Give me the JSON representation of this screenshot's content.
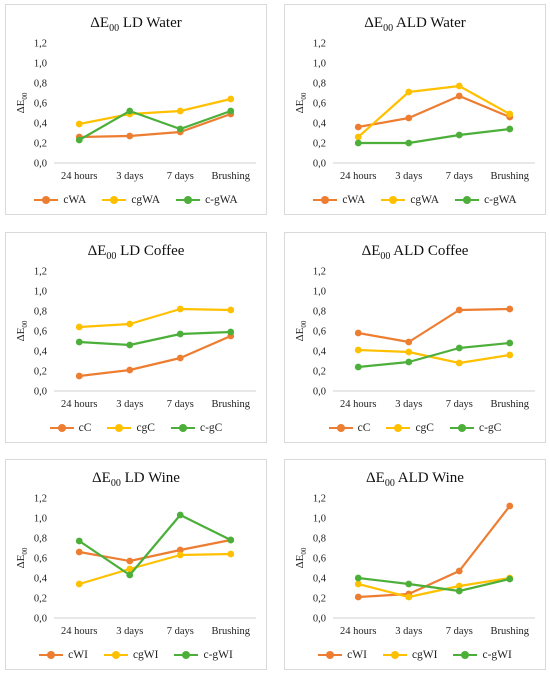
{
  "chart_data": [
    {
      "type": "line",
      "title": "ΔE00 LD Water",
      "title_main": "ΔE",
      "title_sub": "00",
      "title_rest": " LD Water",
      "ylabel": "ΔE00",
      "categories": [
        "24 hours",
        "3 days",
        "7 days",
        "Brushing"
      ],
      "yticks": [
        "0,0",
        "0,2",
        "0,4",
        "0,6",
        "0,8",
        "1,0",
        "1,2"
      ],
      "ylim": [
        0,
        1.2
      ],
      "legend_position": "bottom",
      "grid": false,
      "series": [
        {
          "name": "cWA",
          "color": "#ED7D31",
          "values": [
            0.26,
            0.27,
            0.31,
            0.49
          ]
        },
        {
          "name": "cgWA",
          "color": "#FFC000",
          "values": [
            0.39,
            0.49,
            0.52,
            0.64
          ]
        },
        {
          "name": "c-gWA",
          "color": "#4CAF3A",
          "values": [
            0.23,
            0.52,
            0.34,
            0.52
          ]
        }
      ]
    },
    {
      "type": "line",
      "title": "ΔE00 ALD Water",
      "title_main": "ΔE",
      "title_sub": "00",
      "title_rest": " ALD Water",
      "ylabel": "ΔE00",
      "categories": [
        "24 hours",
        "3 days",
        "7 days",
        "Brushing"
      ],
      "yticks": [
        "0,0",
        "0,2",
        "0,4",
        "0,6",
        "0,8",
        "1,0",
        "1,2"
      ],
      "ylim": [
        0,
        1.2
      ],
      "legend_position": "bottom",
      "grid": false,
      "series": [
        {
          "name": "cWA",
          "color": "#ED7D31",
          "values": [
            0.36,
            0.45,
            0.67,
            0.46
          ]
        },
        {
          "name": "cgWA",
          "color": "#FFC000",
          "values": [
            0.26,
            0.71,
            0.77,
            0.49
          ]
        },
        {
          "name": "c-gWA",
          "color": "#4CAF3A",
          "values": [
            0.2,
            0.2,
            0.28,
            0.34
          ]
        }
      ]
    },
    {
      "type": "line",
      "title": "ΔE00 LD Coffee",
      "title_main": "ΔE",
      "title_sub": "00",
      "title_rest": " LD Coffee",
      "ylabel": "ΔE00",
      "categories": [
        "24 hours",
        "3 days",
        "7 days",
        "Brushing"
      ],
      "yticks": [
        "0,0",
        "0,2",
        "0,4",
        "0,6",
        "0,8",
        "1,0",
        "1,2"
      ],
      "ylim": [
        0,
        1.2
      ],
      "legend_position": "bottom",
      "grid": false,
      "series": [
        {
          "name": "cC",
          "color": "#ED7D31",
          "values": [
            0.15,
            0.21,
            0.33,
            0.55
          ]
        },
        {
          "name": "cgC",
          "color": "#FFC000",
          "values": [
            0.64,
            0.67,
            0.82,
            0.81
          ]
        },
        {
          "name": "c-gC",
          "color": "#4CAF3A",
          "values": [
            0.49,
            0.46,
            0.57,
            0.59
          ]
        }
      ]
    },
    {
      "type": "line",
      "title": "ΔE00 ALD Coffee",
      "title_main": "ΔE",
      "title_sub": "00",
      "title_rest": " ALD Coffee",
      "ylabel": "ΔE00",
      "categories": [
        "24 hours",
        "3 days",
        "7 days",
        "Brushing"
      ],
      "yticks": [
        "0,0",
        "0,2",
        "0,4",
        "0,6",
        "0,8",
        "1,0",
        "1,2"
      ],
      "ylim": [
        0,
        1.2
      ],
      "legend_position": "bottom",
      "grid": false,
      "series": [
        {
          "name": "cC",
          "color": "#ED7D31",
          "values": [
            0.58,
            0.49,
            0.81,
            0.82
          ]
        },
        {
          "name": "cgC",
          "color": "#FFC000",
          "values": [
            0.41,
            0.39,
            0.28,
            0.36
          ]
        },
        {
          "name": "c-gC",
          "color": "#4CAF3A",
          "values": [
            0.24,
            0.29,
            0.43,
            0.48
          ]
        }
      ]
    },
    {
      "type": "line",
      "title": "ΔE00 LD Wine",
      "title_main": "ΔE",
      "title_sub": "00",
      "title_rest": " LD Wine",
      "ylabel": "ΔE00",
      "categories": [
        "24 hours",
        "3 days",
        "7 days",
        "Brushing"
      ],
      "yticks": [
        "0,0",
        "0,2",
        "0,4",
        "0,6",
        "0,8",
        "1,0",
        "1,2"
      ],
      "ylim": [
        0,
        1.2
      ],
      "legend_position": "bottom",
      "grid": false,
      "series": [
        {
          "name": "cWI",
          "color": "#ED7D31",
          "values": [
            0.66,
            0.57,
            0.68,
            0.78
          ]
        },
        {
          "name": "cgWI",
          "color": "#FFC000",
          "values": [
            0.34,
            0.49,
            0.63,
            0.64
          ]
        },
        {
          "name": "c-gWI",
          "color": "#4CAF3A",
          "values": [
            0.77,
            0.43,
            1.03,
            0.78
          ]
        }
      ]
    },
    {
      "type": "line",
      "title": "ΔE00 ALD Wine",
      "title_main": "ΔE",
      "title_sub": "00",
      "title_rest": " ALD Wine",
      "ylabel": "ΔE00",
      "categories": [
        "24 hours",
        "3 days",
        "7 days",
        "Brushing"
      ],
      "yticks": [
        "0,0",
        "0,2",
        "0,4",
        "0,6",
        "0,8",
        "1,0",
        "1,2"
      ],
      "ylim": [
        0,
        1.2
      ],
      "legend_position": "bottom",
      "grid": false,
      "series": [
        {
          "name": "cWI",
          "color": "#ED7D31",
          "values": [
            0.21,
            0.24,
            0.47,
            1.12
          ]
        },
        {
          "name": "cgWI",
          "color": "#FFC000",
          "values": [
            0.34,
            0.21,
            0.32,
            0.4
          ]
        },
        {
          "name": "c-gWI",
          "color": "#4CAF3A",
          "values": [
            0.4,
            0.34,
            0.27,
            0.39
          ]
        }
      ]
    }
  ]
}
